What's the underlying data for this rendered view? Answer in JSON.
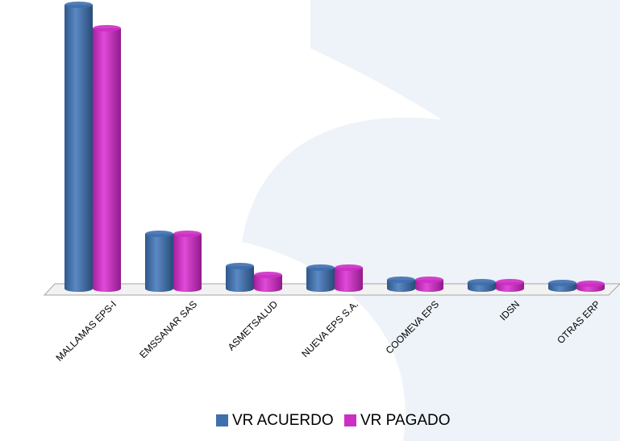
{
  "chart_data": {
    "type": "bar",
    "categories": [
      "MALLAMAS EPS-I",
      "EMSSANAR SAS",
      "ASMETSALUD",
      "NUEVA EPS S.A.",
      "COOMEVA EPS",
      "IDSN",
      "OTRAS ERP"
    ],
    "series": [
      {
        "name": "VR ACUERDO",
        "color": "#3f6fae",
        "values": [
          352,
          68,
          28,
          26,
          11,
          8,
          7
        ]
      },
      {
        "name": "VR PAGADO",
        "color": "#cc2fc4",
        "values": [
          323,
          68,
          17,
          26,
          11,
          8,
          6
        ]
      }
    ]
  }
}
